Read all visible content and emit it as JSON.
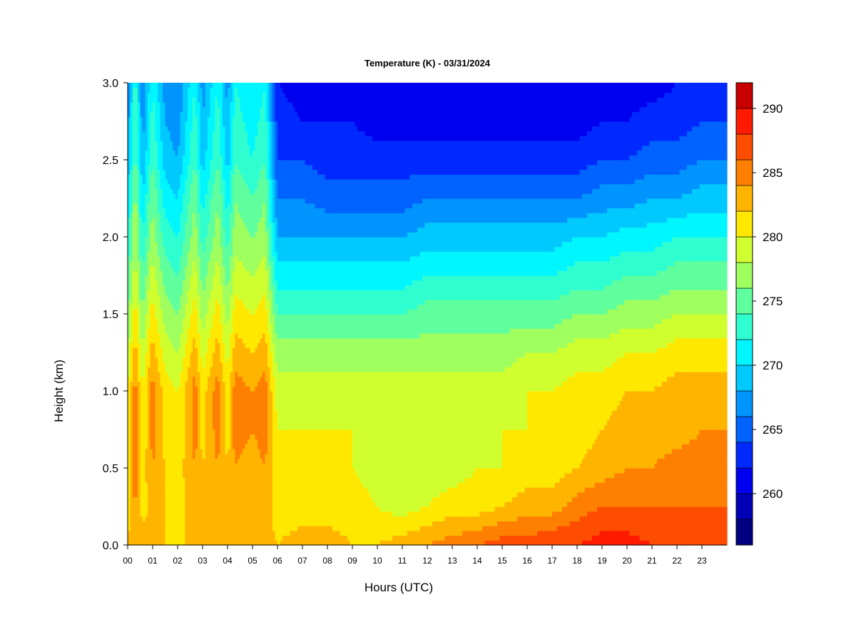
{
  "chart_data": {
    "type": "heatmap",
    "title": "Temperature (K) - 03/31/2024",
    "xlabel": "Hours (UTC)",
    "ylabel": "Height (km)",
    "x_range": [
      0,
      24
    ],
    "ylim": [
      0.0,
      3.0
    ],
    "x_tick_labels": [
      "00",
      "01",
      "02",
      "03",
      "04",
      "05",
      "06",
      "07",
      "08",
      "09",
      "10",
      "11",
      "12",
      "13",
      "14",
      "15",
      "16",
      "17",
      "18",
      "19",
      "20",
      "21",
      "22",
      "23"
    ],
    "y_tick_values": [
      0.0,
      0.5,
      1.0,
      1.5,
      2.0,
      2.5,
      3.0
    ],
    "y_tick_labels": [
      "0.0",
      "0.5",
      "1.0",
      "1.5",
      "2.0",
      "2.5",
      "3.0"
    ],
    "colorbar": {
      "label_values": [
        260,
        265,
        270,
        275,
        280,
        285,
        290
      ],
      "label_texts": [
        "260",
        "265",
        "270",
        "275",
        "280",
        "285",
        "290"
      ],
      "level_boundaries": [
        256,
        258,
        260,
        262,
        264,
        266,
        268,
        270,
        272,
        274,
        276,
        278,
        280,
        282,
        284,
        286,
        288,
        290,
        292
      ],
      "colors": [
        "#000080",
        "#0000B7",
        "#0000F0",
        "#0029FF",
        "#0062FF",
        "#0094FF",
        "#00C9FF",
        "#00F6FF",
        "#2FFFD0",
        "#5FFF9E",
        "#9EFF5F",
        "#D0FF2F",
        "#FFE800",
        "#FFB500",
        "#FF8000",
        "#FF4D00",
        "#FF1A00",
        "#C80000",
        "#800000"
      ]
    },
    "profile_heights_km": [
      0.0,
      0.25,
      0.5,
      0.75,
      1.0,
      1.25,
      1.5,
      1.75,
      2.0,
      2.25,
      2.5,
      2.75,
      3.0
    ],
    "profile_hours": [
      0,
      0.3,
      0.6,
      1.0,
      1.5,
      2.0,
      2.7,
      3.0,
      3.6,
      4.0,
      4.3,
      5.0,
      5.5,
      6.0,
      7,
      8,
      9,
      10,
      11,
      12,
      13,
      14,
      15,
      16,
      17,
      18,
      19,
      20,
      21,
      22,
      23,
      24
    ],
    "temperature_K": [
      [
        282,
        281,
        281,
        280,
        280,
        278,
        276,
        274,
        272,
        270,
        268,
        267,
        266
      ],
      [
        284,
        284,
        286,
        286,
        285,
        283,
        281,
        279,
        278,
        277,
        275,
        274,
        273
      ],
      [
        283,
        281,
        281,
        280,
        280,
        278,
        276,
        274,
        272,
        270,
        268,
        267,
        266
      ],
      [
        283,
        283,
        284,
        285,
        285,
        283,
        281,
        279,
        277,
        276,
        274,
        273,
        272
      ],
      [
        282,
        282,
        282,
        281,
        281,
        279,
        277,
        275,
        273,
        271,
        269,
        268,
        267
      ],
      [
        281,
        281,
        281,
        280,
        280,
        278,
        276,
        274,
        272,
        270,
        268,
        267,
        266
      ],
      [
        283,
        283,
        284,
        285,
        285,
        283,
        281,
        279,
        277,
        276,
        274,
        273,
        272
      ],
      [
        282,
        282,
        282,
        281,
        281,
        279,
        277,
        275,
        273,
        271,
        269,
        268,
        267
      ],
      [
        283,
        283,
        284,
        285,
        285,
        283,
        281,
        279,
        277,
        276,
        274,
        273,
        272
      ],
      [
        282,
        282,
        282,
        281,
        281,
        279,
        277,
        275,
        273,
        271,
        269,
        268,
        267
      ],
      [
        283,
        283,
        284,
        285,
        285,
        283,
        281,
        279,
        277,
        276,
        274,
        273,
        272
      ],
      [
        282,
        282,
        283,
        284,
        284,
        282,
        280,
        278,
        276,
        274,
        272,
        271,
        270
      ],
      [
        283,
        283,
        284,
        285,
        285,
        283,
        281,
        279,
        277,
        276,
        274,
        273,
        272
      ],
      [
        282,
        281,
        281,
        280,
        279,
        277,
        274,
        271,
        268,
        266,
        264,
        263,
        262
      ],
      [
        283,
        281,
        280,
        280,
        279,
        277,
        274,
        271,
        268,
        266,
        264,
        262,
        261
      ],
      [
        283,
        281,
        281,
        280,
        279,
        277,
        274,
        271,
        268,
        265,
        263,
        262,
        261
      ],
      [
        282,
        281,
        280,
        280,
        279,
        277,
        274,
        271,
        268,
        265,
        263,
        262,
        261
      ],
      [
        282,
        280,
        279,
        279,
        279,
        277,
        274,
        271,
        268,
        265,
        263,
        261,
        260
      ],
      [
        283,
        279,
        279,
        279,
        279,
        277,
        274,
        271,
        268,
        265,
        263,
        261,
        260
      ],
      [
        284,
        280,
        279,
        279,
        279,
        277,
        275,
        272,
        269,
        266,
        263,
        261,
        260
      ],
      [
        285,
        281,
        279,
        279,
        279,
        277,
        275,
        272,
        269,
        266,
        263,
        261,
        260
      ],
      [
        286,
        281,
        280,
        279,
        279,
        277,
        275,
        272,
        269,
        266,
        263,
        261,
        260
      ],
      [
        287,
        282,
        280,
        280,
        279,
        277,
        275,
        272,
        269,
        266,
        263,
        261,
        260
      ],
      [
        287,
        283,
        281,
        280,
        280,
        278,
        275,
        272,
        269,
        266,
        263,
        261,
        260
      ],
      [
        288,
        283,
        281,
        281,
        280,
        278,
        275,
        272,
        269,
        266,
        263,
        261,
        260
      ],
      [
        288,
        285,
        282,
        281,
        281,
        279,
        276,
        273,
        270,
        266,
        263,
        261,
        260
      ],
      [
        289,
        286,
        283,
        282,
        281,
        279,
        276,
        273,
        270,
        267,
        264,
        262,
        260
      ],
      [
        289,
        286,
        284,
        283,
        282,
        280,
        277,
        274,
        271,
        267,
        264,
        262,
        261
      ],
      [
        288,
        286,
        284,
        283,
        282,
        280,
        277,
        274,
        271,
        268,
        265,
        263,
        261
      ],
      [
        288,
        286,
        285,
        283,
        283,
        281,
        278,
        275,
        272,
        268,
        265,
        263,
        262
      ],
      [
        288,
        286,
        285,
        284,
        283,
        281,
        278,
        275,
        272,
        269,
        266,
        264,
        262
      ],
      [
        288,
        286,
        285,
        284,
        283,
        281,
        278,
        275,
        272,
        269,
        266,
        264,
        263
      ]
    ]
  }
}
